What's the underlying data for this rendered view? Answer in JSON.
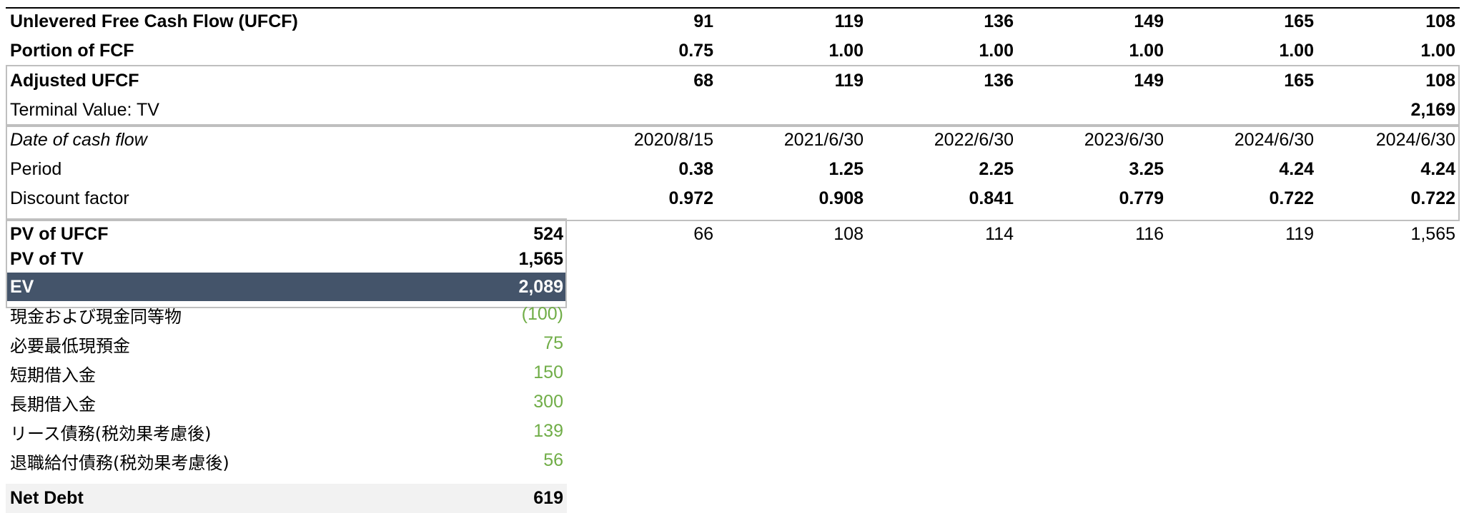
{
  "rows": {
    "ufcf": {
      "label": "Unlevered Free Cash Flow (UFCF)",
      "values": [
        "91",
        "119",
        "136",
        "149",
        "165",
        "108"
      ]
    },
    "portion": {
      "label": "Portion of FCF",
      "values": [
        "0.75",
        "1.00",
        "1.00",
        "1.00",
        "1.00",
        "1.00"
      ]
    },
    "adjusted": {
      "label": "Adjusted UFCF",
      "values": [
        "68",
        "119",
        "136",
        "149",
        "165",
        "108"
      ]
    },
    "tv": {
      "label": "Terminal Value: TV",
      "value": "2,169"
    },
    "date": {
      "label": "Date of cash flow",
      "values": [
        "2020/8/15",
        "2021/6/30",
        "2022/6/30",
        "2023/6/30",
        "2024/6/30",
        "2024/6/30"
      ]
    },
    "period": {
      "label": "Period",
      "values": [
        "0.38",
        "1.25",
        "2.25",
        "3.25",
        "4.24",
        "4.24"
      ]
    },
    "discount": {
      "label": "Discount factor",
      "values": [
        "0.972",
        "0.908",
        "0.841",
        "0.779",
        "0.722",
        "0.722"
      ]
    },
    "pv_ufcf": {
      "label": "PV of UFCF",
      "total": "524",
      "values": [
        "66",
        "108",
        "114",
        "116",
        "119",
        "1,565"
      ]
    },
    "pv_tv": {
      "label": "PV of TV",
      "total": "1,565"
    },
    "ev": {
      "label": "EV",
      "total": "2,089"
    },
    "cash": {
      "label": "現金および現金同等物",
      "value": "(100)"
    },
    "min_cash": {
      "label": "必要最低現預金",
      "value": "75"
    },
    "st_debt": {
      "label": "短期借入金",
      "value": "150"
    },
    "lt_debt": {
      "label": "長期借入金",
      "value": "300"
    },
    "lease": {
      "label": "リース債務(税効果考慮後)",
      "value": "139"
    },
    "retire": {
      "label": "退職給付債務(税効果考慮後)",
      "value": "56"
    },
    "net_debt": {
      "label": "Net Debt",
      "total": "619"
    }
  },
  "colors": {
    "ev_fill": "#44546a",
    "input_green": "#70ad47",
    "net_debt_fill": "#f2f2f2",
    "border": "#bfbfbf"
  }
}
